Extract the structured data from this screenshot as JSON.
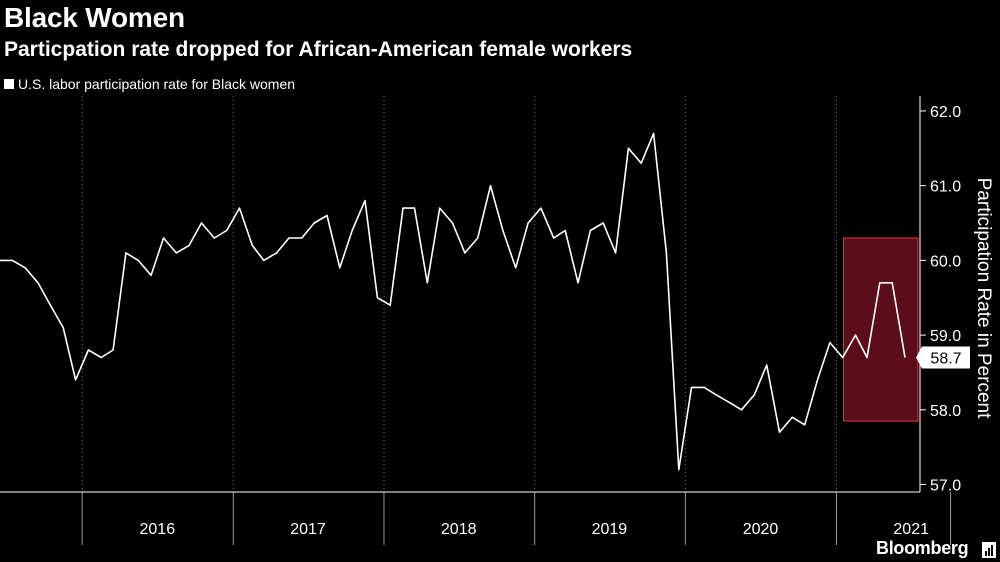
{
  "header": {
    "title": "Black Women",
    "subtitle": "Particpation rate dropped for African-American female workers",
    "legend_label": "U.S. labor participation rate for Black women"
  },
  "footer": {
    "brand": "Bloomberg"
  },
  "colors": {
    "background": "#000000",
    "line": "#ffffff",
    "highlight_fill": "#6b0f1e",
    "highlight_stroke": "#e0334d",
    "grid": "#ffffff"
  },
  "chart_data": {
    "type": "line",
    "title": "Black Women",
    "subtitle": "Particpation rate dropped for African-American female workers",
    "ylabel": "Participation Rate in Percent",
    "xlabel": "",
    "ylim": [
      56.9,
      62.2
    ],
    "y_ticks": [
      "57.0",
      "58.0",
      "59.0",
      "60.0",
      "61.0",
      "62.0"
    ],
    "x_tick_labels": [
      "2016",
      "2017",
      "2018",
      "2019",
      "2020",
      "2021"
    ],
    "grid": "vertical dotted at year boundaries",
    "legend_position": "top-left",
    "last_value_label": "58.7",
    "highlight": {
      "from": "2021-02",
      "to": "2021-06",
      "ylim": [
        57.85,
        60.3
      ]
    },
    "series": [
      {
        "name": "U.S. labor participation rate for Black women",
        "x": [
          "2015-06",
          "2015-07",
          "2015-08",
          "2015-09",
          "2015-10",
          "2015-11",
          "2015-12",
          "2016-01",
          "2016-02",
          "2016-03",
          "2016-04",
          "2016-05",
          "2016-06",
          "2016-07",
          "2016-08",
          "2016-09",
          "2016-10",
          "2016-11",
          "2016-12",
          "2017-01",
          "2017-02",
          "2017-03",
          "2017-04",
          "2017-05",
          "2017-06",
          "2017-07",
          "2017-08",
          "2017-09",
          "2017-10",
          "2017-11",
          "2017-12",
          "2018-01",
          "2018-02",
          "2018-03",
          "2018-04",
          "2018-05",
          "2018-06",
          "2018-07",
          "2018-08",
          "2018-09",
          "2018-10",
          "2018-11",
          "2018-12",
          "2019-01",
          "2019-02",
          "2019-03",
          "2019-04",
          "2019-05",
          "2019-06",
          "2019-07",
          "2019-08",
          "2019-09",
          "2019-10",
          "2019-11",
          "2019-12",
          "2020-01",
          "2020-02",
          "2020-03",
          "2020-04",
          "2020-05",
          "2020-06",
          "2020-07",
          "2020-08",
          "2020-09",
          "2020-10",
          "2020-11",
          "2020-12",
          "2021-01",
          "2021-02",
          "2021-03",
          "2021-04",
          "2021-05",
          "2021-06"
        ],
        "values": [
          60.0,
          60.0,
          59.9,
          59.7,
          59.4,
          59.1,
          58.4,
          58.8,
          58.7,
          58.8,
          60.1,
          60.0,
          59.8,
          60.3,
          60.1,
          60.2,
          60.5,
          60.3,
          60.4,
          60.7,
          60.2,
          60.0,
          60.1,
          60.3,
          60.3,
          60.5,
          60.6,
          59.9,
          60.4,
          60.8,
          59.5,
          59.4,
          60.7,
          60.7,
          59.7,
          60.7,
          60.5,
          60.1,
          60.3,
          61.0,
          60.4,
          59.9,
          60.5,
          60.7,
          60.3,
          60.4,
          59.7,
          60.4,
          60.5,
          60.1,
          61.5,
          61.3,
          61.7,
          60.1,
          57.2,
          58.3,
          58.3,
          58.2,
          58.1,
          58.0,
          58.2,
          58.6,
          57.7,
          57.9,
          57.8,
          58.4,
          58.9,
          58.7,
          59.0,
          58.7,
          59.7,
          59.7,
          58.7
        ]
      }
    ]
  }
}
